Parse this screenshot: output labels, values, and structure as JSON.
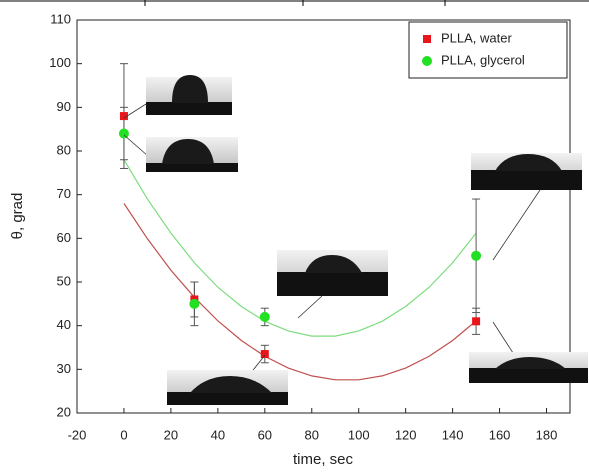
{
  "chart_data": {
    "type": "scatter",
    "x_label": "time, sec",
    "y_label": "θ, grad",
    "xlim": [
      -20,
      190
    ],
    "xticks": [
      -20,
      0,
      20,
      40,
      60,
      80,
      100,
      120,
      140,
      160,
      180
    ],
    "ylim": [
      20,
      110
    ],
    "yticks": [
      20,
      30,
      40,
      50,
      60,
      70,
      80,
      90,
      100,
      110
    ],
    "legend": "upper right",
    "series": [
      {
        "name": "PLLA, water",
        "color": "#e8161b",
        "marker": "square",
        "x": [
          0,
          30,
          60,
          150
        ],
        "values": [
          88,
          46,
          33.5,
          41
        ],
        "errors": [
          12,
          4,
          2,
          3
        ]
      },
      {
        "name": "PLLA, glycerol",
        "color": "#22e022",
        "marker": "circle",
        "x": [
          0,
          30,
          60,
          150
        ],
        "values": [
          84,
          45,
          42,
          56
        ],
        "errors": [
          6,
          5,
          2,
          13
        ]
      }
    ],
    "fits": [
      {
        "color": "#c0504d",
        "x": [
          0,
          10,
          20,
          30,
          40,
          50,
          60,
          70,
          80,
          90,
          100,
          110,
          120,
          130,
          140,
          150
        ],
        "values": [
          68.0,
          59.9,
          52.7,
          46.5,
          41.1,
          36.6,
          33.0,
          30.3,
          28.5,
          27.6,
          27.6,
          28.5,
          30.3,
          33.0,
          36.6,
          41.1
        ]
      },
      {
        "color": "#7ddc7d",
        "x": [
          0,
          10,
          20,
          30,
          40,
          50,
          60,
          70,
          80,
          90,
          100,
          110,
          120,
          130,
          140,
          150
        ],
        "values": [
          78.0,
          69.0,
          61.2,
          54.4,
          48.8,
          44.4,
          41.0,
          38.8,
          37.6,
          37.6,
          38.8,
          41.0,
          44.4,
          48.8,
          54.4,
          61.2
        ]
      }
    ]
  }
}
